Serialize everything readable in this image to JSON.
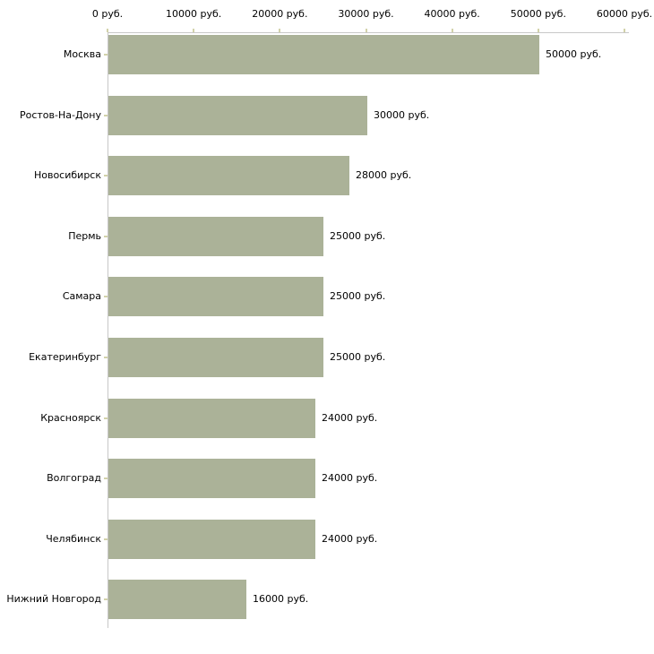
{
  "chart_data": {
    "type": "bar",
    "orientation": "horizontal",
    "title": "",
    "xlabel": "",
    "ylabel": "",
    "categories": [
      "Москва",
      "Ростов-На-Дону",
      "Новосибирск",
      "Пермь",
      "Самара",
      "Екатеринбург",
      "Красноярск",
      "Волгоград",
      "Челябинск",
      "Нижний Новгород"
    ],
    "values": [
      50000,
      30000,
      28000,
      25000,
      25000,
      25000,
      24000,
      24000,
      24000,
      16000
    ],
    "value_labels": [
      "50000 руб.",
      "30000 руб.",
      "28000 руб.",
      "25000 руб.",
      "25000 руб.",
      "25000 руб.",
      "24000 руб.",
      "24000 руб.",
      "24000 руб.",
      "16000 руб."
    ],
    "x_axis": {
      "position": "top",
      "min": 0,
      "max": 60000,
      "tick_values": [
        0,
        10000,
        20000,
        30000,
        40000,
        50000,
        60000
      ],
      "tick_labels": [
        "0 руб.",
        "10000 руб.",
        "20000 руб.",
        "30000 руб.",
        "40000 руб.",
        "50000 руб.",
        "60000 руб."
      ]
    },
    "legend": "none",
    "grid": "off",
    "colors": {
      "bar": "#abb298",
      "axis_line": "#c8c8c8",
      "tick_mark": "#d2d2aa",
      "text": "#000000",
      "background": "#ffffff"
    }
  }
}
